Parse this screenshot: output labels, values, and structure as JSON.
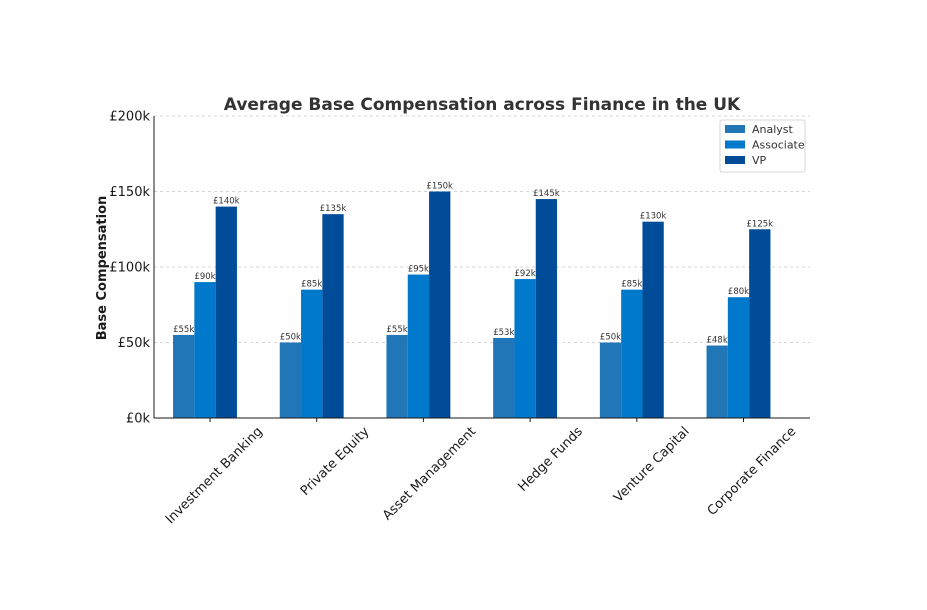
{
  "chart_data": {
    "type": "bar",
    "title": "Average Base Compensation across Finance in the UK",
    "xlabel": "",
    "ylabel": "Base Compensation",
    "categories": [
      "Investment Banking",
      "Private Equity",
      "Asset Management",
      "Hedge Funds",
      "Venture Capital",
      "Corporate Finance"
    ],
    "series": [
      {
        "name": "Analyst",
        "color": "#2176b8",
        "values": [
          55,
          50,
          55,
          53,
          50,
          48
        ],
        "labels": [
          "£55k",
          "£50k",
          "£55k",
          "£53k",
          "£50k",
          "£48k"
        ]
      },
      {
        "name": "Associate",
        "color": "#0078cc",
        "values": [
          90,
          85,
          95,
          92,
          85,
          80
        ],
        "labels": [
          "£90k",
          "£85k",
          "£95k",
          "£92k",
          "£85k",
          "£80k"
        ]
      },
      {
        "name": "VP",
        "color": "#004c99",
        "values": [
          140,
          135,
          150,
          145,
          130,
          125
        ],
        "labels": [
          "£140k",
          "£135k",
          "£150k",
          "£145k",
          "£130k",
          "£125k"
        ]
      }
    ],
    "ylim": [
      0,
      200
    ],
    "yticks": [
      0,
      50,
      100,
      150,
      200
    ],
    "ytick_labels": [
      "£0k",
      "£50k",
      "£100k",
      "£150k",
      "£200k"
    ],
    "grid": true,
    "legend": "top-right"
  }
}
